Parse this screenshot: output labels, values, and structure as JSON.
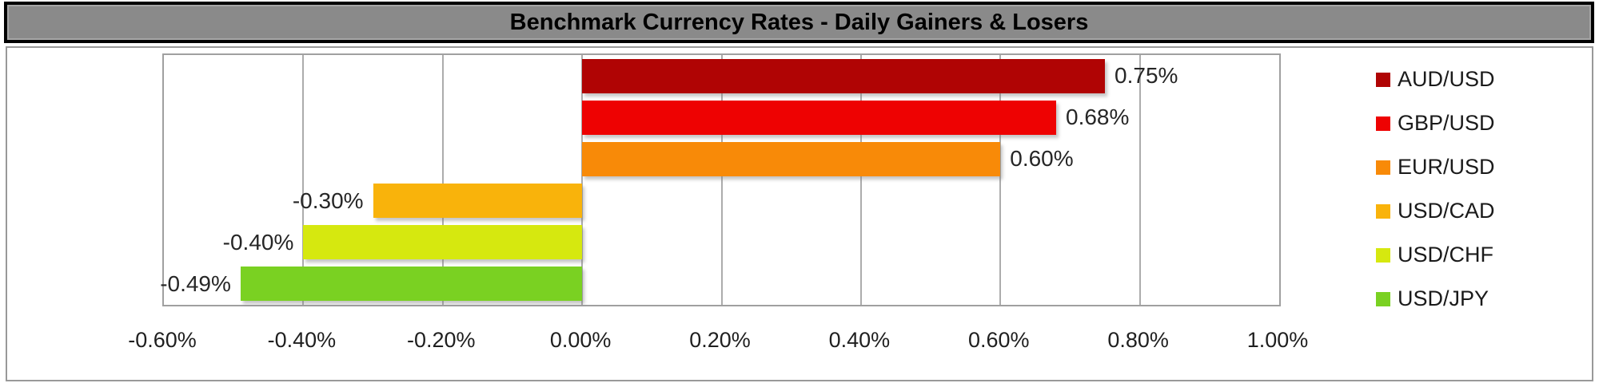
{
  "chart_data": {
    "type": "bar",
    "orientation": "horizontal",
    "title": "Benchmark Currency Rates - Daily Gainers & Losers",
    "categories": [
      "AUD/USD",
      "GBP/USD",
      "EUR/USD",
      "USD/CAD",
      "USD/CHF",
      "USD/JPY"
    ],
    "values": [
      0.75,
      0.68,
      0.6,
      -0.3,
      -0.4,
      -0.49
    ],
    "value_labels": [
      "0.75%",
      "0.68%",
      "0.60%",
      "-0.30%",
      "-0.40%",
      "-0.49%"
    ],
    "bar_colors": [
      "#B00404",
      "#EE0202",
      "#F88A08",
      "#F9B30B",
      "#D6E80F",
      "#7AD122"
    ],
    "xaxis": {
      "min": -0.6,
      "max": 1.0,
      "step": 0.2,
      "tick_labels": [
        "-0.60%",
        "-0.40%",
        "-0.20%",
        "0.00%",
        "0.20%",
        "0.40%",
        "0.60%",
        "0.80%",
        "1.00%"
      ]
    },
    "legend": {
      "position": "right",
      "entries": [
        "AUD/USD",
        "GBP/USD",
        "EUR/USD",
        "USD/CAD",
        "USD/CHF",
        "USD/JPY"
      ]
    },
    "grid": true,
    "colors": {
      "title_bar_bg": "#8A8A8A",
      "title_text": "#000000",
      "frame_border": "#999999",
      "plot_border": "#A0A0A0",
      "gridline": "#ACACAC",
      "label_text": "#262626"
    }
  }
}
